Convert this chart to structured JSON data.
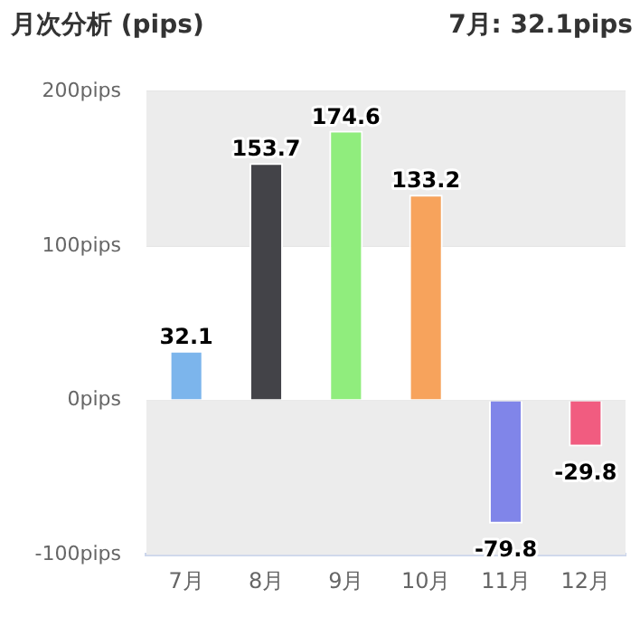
{
  "chart_data": {
    "type": "bar",
    "title": "月次分析 (pips)",
    "subtitle": "7月: 32.1pips",
    "categories": [
      "7月",
      "8月",
      "9月",
      "10月",
      "11月",
      "12月"
    ],
    "values": [
      32.1,
      153.7,
      174.6,
      133.2,
      -79.8,
      -29.8
    ],
    "colors": [
      "#7cb5ec",
      "#434348",
      "#90ed7d",
      "#f7a35c",
      "#8085e9",
      "#f15c80"
    ],
    "ylim": [
      -100,
      200
    ],
    "yticks": [
      {
        "value": -100,
        "label": "-100pips"
      },
      {
        "value": 0,
        "label": "0pips"
      },
      {
        "value": 100,
        "label": "100pips"
      },
      {
        "value": 200,
        "label": "200pips"
      }
    ],
    "bands": [
      {
        "axis": "y",
        "from": 100,
        "to": 200,
        "color": "#ececec"
      },
      {
        "axis": "y",
        "from": -100,
        "to": 0,
        "color": "#ececec"
      }
    ],
    "grid": "y",
    "data_labels": true,
    "legend": false
  }
}
